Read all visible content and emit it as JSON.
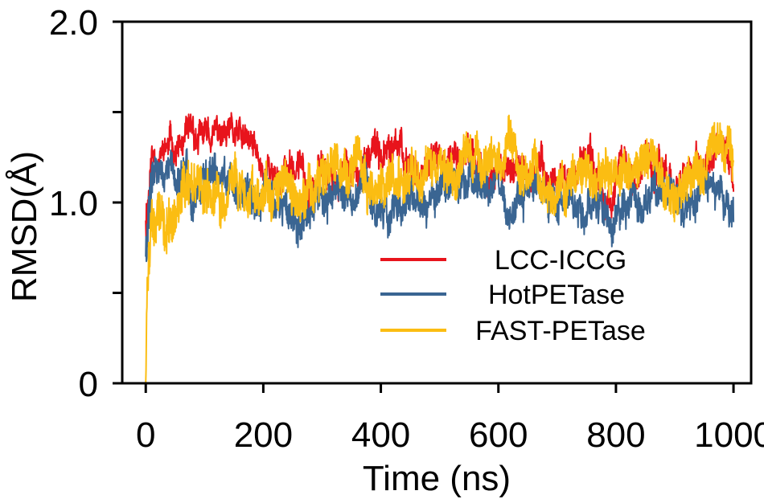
{
  "chart_data": {
    "type": "line",
    "xlabel": "Time (ns)",
    "ylabel": "RMSD(Å)",
    "xlim": [
      -40,
      1030
    ],
    "ylim": [
      0,
      2.0
    ],
    "xticks": [
      0,
      200,
      400,
      600,
      800,
      1000
    ],
    "xtick_labels": [
      "0",
      "200",
      "400",
      "600",
      "800",
      "1000"
    ],
    "yticks": [
      0,
      0.5,
      1.0,
      1.5,
      2.0
    ],
    "ytick_labels": [
      "0",
      "",
      "1.0",
      "",
      "2.0"
    ],
    "legend_position": "lower-right",
    "series": [
      {
        "name": "LCC-ICCG",
        "color": "#e8141c",
        "x": [
          0,
          10,
          25,
          50,
          75,
          100,
          125,
          150,
          200,
          250,
          300,
          350,
          400,
          450,
          500,
          550,
          600,
          650,
          700,
          750,
          800,
          850,
          900,
          950,
          1000
        ],
        "values": [
          0.9,
          1.28,
          1.3,
          1.3,
          1.27,
          1.3,
          1.33,
          1.3,
          1.18,
          1.17,
          1.2,
          1.2,
          1.22,
          1.22,
          1.19,
          1.2,
          1.2,
          1.19,
          1.17,
          1.15,
          1.18,
          1.2,
          1.2,
          1.2,
          1.15
        ],
        "amplitude": [
          0.1,
          0.05,
          0.05,
          0.06,
          0.06,
          0.06,
          0.06,
          0.06,
          0.07,
          0.07,
          0.07,
          0.07,
          0.07,
          0.07,
          0.07,
          0.07,
          0.07,
          0.07,
          0.07,
          0.07,
          0.07,
          0.07,
          0.07,
          0.07,
          0.07
        ]
      },
      {
        "name": "HotPETase",
        "color": "#3a6592",
        "x": [
          0,
          10,
          25,
          50,
          75,
          100,
          125,
          150,
          200,
          250,
          300,
          350,
          400,
          450,
          500,
          550,
          600,
          650,
          700,
          750,
          800,
          850,
          900,
          950,
          1000
        ],
        "values": [
          0.7,
          1.1,
          1.18,
          1.12,
          1.08,
          1.1,
          1.1,
          1.08,
          1.05,
          1.05,
          1.05,
          1.02,
          1.0,
          1.02,
          1.04,
          1.05,
          1.05,
          1.05,
          1.05,
          1.05,
          1.05,
          1.08,
          1.05,
          1.05,
          1.0
        ],
        "amplitude": [
          0.2,
          0.1,
          0.07,
          0.08,
          0.08,
          0.08,
          0.08,
          0.08,
          0.08,
          0.08,
          0.08,
          0.08,
          0.08,
          0.08,
          0.08,
          0.08,
          0.08,
          0.08,
          0.08,
          0.08,
          0.08,
          0.08,
          0.08,
          0.08,
          0.08
        ]
      },
      {
        "name": "FAST-PETase",
        "color": "#fbbd12",
        "x": [
          0,
          2,
          5,
          10,
          20,
          40,
          60,
          80,
          100,
          150,
          200,
          250,
          300,
          350,
          400,
          450,
          500,
          550,
          600,
          650,
          700,
          750,
          800,
          850,
          900,
          950,
          1000
        ],
        "values": [
          0.0,
          0.5,
          0.7,
          0.85,
          0.88,
          0.92,
          0.98,
          1.0,
          1.03,
          1.07,
          1.1,
          1.12,
          1.13,
          1.15,
          1.17,
          1.18,
          1.18,
          1.19,
          1.18,
          1.18,
          1.17,
          1.15,
          1.17,
          1.2,
          1.2,
          1.22,
          1.15
        ],
        "amplitude": [
          0.0,
          0.12,
          0.12,
          0.12,
          0.12,
          0.12,
          0.12,
          0.12,
          0.11,
          0.1,
          0.1,
          0.1,
          0.1,
          0.1,
          0.1,
          0.1,
          0.1,
          0.1,
          0.1,
          0.1,
          0.1,
          0.1,
          0.1,
          0.1,
          0.1,
          0.1,
          0.1
        ]
      }
    ]
  }
}
